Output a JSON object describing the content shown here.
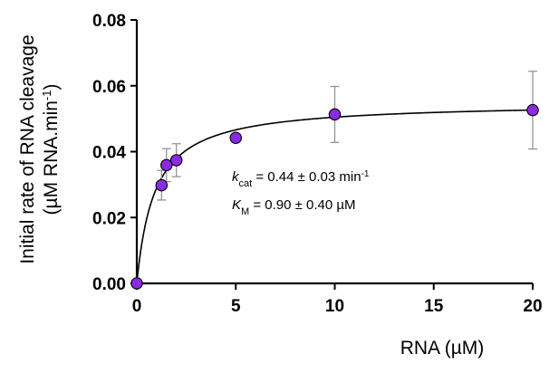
{
  "chart_data": {
    "type": "scatter",
    "title": "",
    "xlabel": "RNA (µM)",
    "ylabel_line1": "Initial rate of RNA cleavage",
    "ylabel_line2": "(µM RNA.min",
    "ylabel_sup": "-1",
    "ylabel_close": ")",
    "xlim": [
      0,
      20
    ],
    "ylim": [
      0,
      0.08
    ],
    "xticks": [
      0,
      5,
      10,
      15,
      20
    ],
    "xtick_labels": [
      "0",
      "5",
      "10",
      "15",
      "20"
    ],
    "yticks": [
      0,
      0.02,
      0.04,
      0.06,
      0.08
    ],
    "ytick_labels": [
      "0.00",
      "0.02",
      "0.04",
      "0.06",
      "0.08"
    ],
    "grid": false,
    "marker_color": "#8a2be2",
    "errorbar_color": "#8c8c8c",
    "points": [
      {
        "x": 0,
        "y": 0.0,
        "err": 0
      },
      {
        "x": 1.25,
        "y": 0.0298,
        "err": 0.0045
      },
      {
        "x": 1.5,
        "y": 0.0359,
        "err": 0.005
      },
      {
        "x": 2,
        "y": 0.0374,
        "err": 0.005
      },
      {
        "x": 5,
        "y": 0.0442,
        "err": 0.0012
      },
      {
        "x": 10,
        "y": 0.0513,
        "err": 0.0085
      },
      {
        "x": 20,
        "y": 0.0526,
        "err": 0.0118
      }
    ],
    "fit": {
      "model": "michaelis-menten",
      "vmax": 0.055,
      "km": 0.9
    },
    "annotations": {
      "kcat": {
        "sym": "k",
        "sub": "cat",
        "text": " = 0.44 ± 0.03 min",
        "sup": "-1"
      },
      "km": {
        "sym": "K",
        "sub": "M",
        "text": " = 0.90 ± 0.40 µM"
      }
    }
  }
}
